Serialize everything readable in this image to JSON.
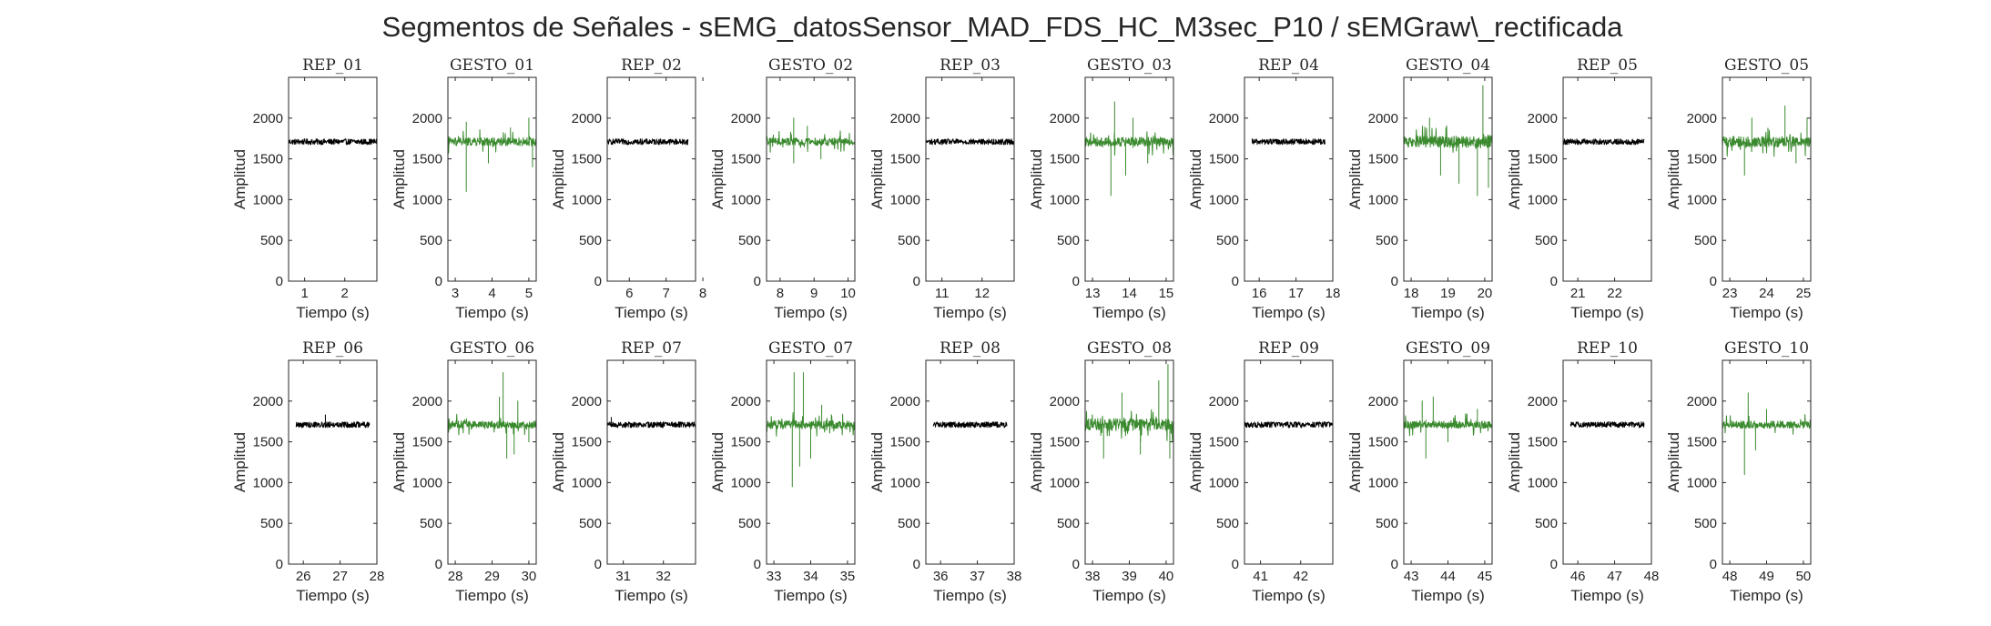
{
  "figure": {
    "title": "Segmentos de Señales - sEMG_datosSensor_MAD_FDS_HC_M3sec_P10 / sEMGraw\\_rectificada"
  },
  "colors": {
    "rep": "#000000",
    "gesto": "#3a8a2e",
    "axes": "#262626"
  },
  "chart_data": [
    {
      "type": "line",
      "title": "REP_01",
      "xlabel": "Tiempo (s)",
      "ylabel": "Amplitud",
      "xlim": [
        0.6,
        2.8
      ],
      "ylim": [
        0,
        2500
      ],
      "xticks": [
        1,
        2
      ],
      "yticks": [
        0,
        500,
        1000,
        1500,
        2000
      ],
      "series": [
        {
          "kind": "rep",
          "x_range": [
            0.6,
            2.8
          ],
          "baseline": 1710,
          "noise": 35,
          "spikes": []
        }
      ]
    },
    {
      "type": "line",
      "title": "GESTO_01",
      "xlabel": "Tiempo (s)",
      "ylabel": "Amplitud",
      "xlim": [
        2.8,
        5.2
      ],
      "ylim": [
        0,
        2500
      ],
      "xticks": [
        3,
        4,
        5
      ],
      "yticks": [
        0,
        500,
        1000,
        1500,
        2000
      ],
      "series": [
        {
          "kind": "gesto",
          "x_range": [
            2.8,
            5.2
          ],
          "baseline": 1710,
          "noise": 50,
          "spikes": [
            {
              "x": 3.3,
              "y": 1100
            },
            {
              "x": 3.3,
              "y": 1950
            },
            {
              "x": 3.9,
              "y": 1450
            },
            {
              "x": 4.5,
              "y": 1880
            },
            {
              "x": 5.0,
              "y": 2000
            },
            {
              "x": 5.1,
              "y": 1400
            }
          ]
        }
      ]
    },
    {
      "type": "line",
      "title": "REP_02",
      "xlabel": "Tiempo (s)",
      "ylabel": "Amplitud",
      "xlim": [
        5.4,
        7.8
      ],
      "ylim": [
        0,
        2500
      ],
      "xticks": [
        6,
        7,
        8
      ],
      "yticks": [
        0,
        500,
        1000,
        1500,
        2000
      ],
      "series": [
        {
          "kind": "rep",
          "x_range": [
            5.4,
            7.6
          ],
          "baseline": 1710,
          "noise": 35,
          "spikes": []
        }
      ]
    },
    {
      "type": "line",
      "title": "GESTO_02",
      "xlabel": "Tiempo (s)",
      "ylabel": "Amplitud",
      "xlim": [
        7.6,
        10.2
      ],
      "ylim": [
        0,
        2500
      ],
      "xticks": [
        8,
        9,
        10
      ],
      "yticks": [
        0,
        500,
        1000,
        1500,
        2000
      ],
      "series": [
        {
          "kind": "gesto",
          "x_range": [
            7.6,
            10.2
          ],
          "baseline": 1710,
          "noise": 45,
          "spikes": [
            {
              "x": 8.4,
              "y": 1450
            },
            {
              "x": 8.4,
              "y": 2000
            },
            {
              "x": 8.8,
              "y": 1900
            },
            {
              "x": 9.2,
              "y": 1500
            }
          ]
        }
      ]
    },
    {
      "type": "line",
      "title": "REP_03",
      "xlabel": "Tiempo (s)",
      "ylabel": "Amplitud",
      "xlim": [
        10.6,
        12.8
      ],
      "ylim": [
        0,
        2500
      ],
      "xticks": [
        11,
        12
      ],
      "yticks": [
        0,
        500,
        1000,
        1500,
        2000
      ],
      "series": [
        {
          "kind": "rep",
          "x_range": [
            10.6,
            12.8
          ],
          "baseline": 1710,
          "noise": 35,
          "spikes": []
        }
      ]
    },
    {
      "type": "line",
      "title": "GESTO_03",
      "xlabel": "Tiempo (s)",
      "ylabel": "Amplitud",
      "xlim": [
        12.8,
        15.2
      ],
      "ylim": [
        0,
        2500
      ],
      "xticks": [
        13,
        14,
        15
      ],
      "yticks": [
        0,
        500,
        1000,
        1500,
        2000
      ],
      "series": [
        {
          "kind": "gesto",
          "x_range": [
            12.8,
            15.2
          ],
          "baseline": 1710,
          "noise": 55,
          "spikes": [
            {
              "x": 13.5,
              "y": 1050
            },
            {
              "x": 13.6,
              "y": 2200
            },
            {
              "x": 13.9,
              "y": 1300
            },
            {
              "x": 14.1,
              "y": 2000
            },
            {
              "x": 14.5,
              "y": 1450
            }
          ]
        }
      ]
    },
    {
      "type": "line",
      "title": "REP_04",
      "xlabel": "Tiempo (s)",
      "ylabel": "Amplitud",
      "xlim": [
        15.6,
        18.0
      ],
      "ylim": [
        0,
        2500
      ],
      "xticks": [
        16,
        17,
        18
      ],
      "yticks": [
        0,
        500,
        1000,
        1500,
        2000
      ],
      "series": [
        {
          "kind": "rep",
          "x_range": [
            15.8,
            17.8
          ],
          "baseline": 1710,
          "noise": 35,
          "spikes": []
        }
      ]
    },
    {
      "type": "line",
      "title": "GESTO_04",
      "xlabel": "Tiempo (s)",
      "ylabel": "Amplitud",
      "xlim": [
        17.8,
        20.2
      ],
      "ylim": [
        0,
        2500
      ],
      "xticks": [
        18,
        19,
        20
      ],
      "yticks": [
        0,
        500,
        1000,
        1500,
        2000
      ],
      "series": [
        {
          "kind": "gesto",
          "x_range": [
            17.8,
            20.2
          ],
          "baseline": 1710,
          "noise": 70,
          "spikes": [
            {
              "x": 18.5,
              "y": 2000
            },
            {
              "x": 18.8,
              "y": 1300
            },
            {
              "x": 19.3,
              "y": 1200
            },
            {
              "x": 19.8,
              "y": 1050
            },
            {
              "x": 19.95,
              "y": 2400
            },
            {
              "x": 20.1,
              "y": 1150
            }
          ]
        }
      ]
    },
    {
      "type": "line",
      "title": "REP_05",
      "xlabel": "Tiempo (s)",
      "ylabel": "Amplitud",
      "xlim": [
        20.6,
        23.0
      ],
      "ylim": [
        0,
        2500
      ],
      "xticks": [
        21,
        22
      ],
      "yticks": [
        0,
        500,
        1000,
        1500,
        2000
      ],
      "series": [
        {
          "kind": "rep",
          "x_range": [
            20.6,
            22.8
          ],
          "baseline": 1710,
          "noise": 35,
          "spikes": []
        }
      ]
    },
    {
      "type": "line",
      "title": "GESTO_05",
      "xlabel": "Tiempo (s)",
      "ylabel": "Amplitud",
      "xlim": [
        22.8,
        25.2
      ],
      "ylim": [
        0,
        2500
      ],
      "xticks": [
        23,
        24,
        25
      ],
      "yticks": [
        0,
        500,
        1000,
        1500,
        2000
      ],
      "series": [
        {
          "kind": "gesto",
          "x_range": [
            22.8,
            25.2
          ],
          "baseline": 1710,
          "noise": 65,
          "spikes": [
            {
              "x": 23.4,
              "y": 1300
            },
            {
              "x": 23.6,
              "y": 2000
            },
            {
              "x": 24.5,
              "y": 2150
            },
            {
              "x": 24.8,
              "y": 1450
            },
            {
              "x": 25.1,
              "y": 2000
            }
          ]
        }
      ]
    },
    {
      "type": "line",
      "title": "REP_06",
      "xlabel": "Tiempo (s)",
      "ylabel": "Amplitud",
      "xlim": [
        25.6,
        28.0
      ],
      "ylim": [
        0,
        2500
      ],
      "xticks": [
        26,
        27,
        28
      ],
      "yticks": [
        0,
        500,
        1000,
        1500,
        2000
      ],
      "series": [
        {
          "kind": "rep",
          "x_range": [
            25.8,
            27.8
          ],
          "baseline": 1710,
          "noise": 35,
          "spikes": [
            {
              "x": 26.6,
              "y": 1830
            }
          ]
        }
      ]
    },
    {
      "type": "line",
      "title": "GESTO_06",
      "xlabel": "Tiempo (s)",
      "ylabel": "Amplitud",
      "xlim": [
        27.8,
        30.2
      ],
      "ylim": [
        0,
        2500
      ],
      "xticks": [
        28,
        29,
        30
      ],
      "yticks": [
        0,
        500,
        1000,
        1500,
        2000
      ],
      "series": [
        {
          "kind": "gesto",
          "x_range": [
            27.8,
            30.2
          ],
          "baseline": 1710,
          "noise": 45,
          "spikes": [
            {
              "x": 29.2,
              "y": 2050
            },
            {
              "x": 29.3,
              "y": 2350
            },
            {
              "x": 29.4,
              "y": 1300
            },
            {
              "x": 29.6,
              "y": 1350
            },
            {
              "x": 29.7,
              "y": 2000
            },
            {
              "x": 30.0,
              "y": 1500
            }
          ]
        }
      ]
    },
    {
      "type": "line",
      "title": "REP_07",
      "xlabel": "Tiempo (s)",
      "ylabel": "Amplitud",
      "xlim": [
        30.6,
        32.8
      ],
      "ylim": [
        0,
        2500
      ],
      "xticks": [
        31,
        32
      ],
      "yticks": [
        0,
        500,
        1000,
        1500,
        2000
      ],
      "series": [
        {
          "kind": "rep",
          "x_range": [
            30.6,
            32.8
          ],
          "baseline": 1710,
          "noise": 35,
          "spikes": [
            {
              "x": 30.7,
              "y": 1800
            }
          ]
        }
      ]
    },
    {
      "type": "line",
      "title": "GESTO_07",
      "xlabel": "Tiempo (s)",
      "ylabel": "Amplitud",
      "xlim": [
        32.8,
        35.2
      ],
      "ylim": [
        0,
        2500
      ],
      "xticks": [
        33,
        34,
        35
      ],
      "yticks": [
        0,
        500,
        1000,
        1500,
        2000
      ],
      "series": [
        {
          "kind": "gesto",
          "x_range": [
            32.8,
            35.2
          ],
          "baseline": 1710,
          "noise": 50,
          "spikes": [
            {
              "x": 33.5,
              "y": 950
            },
            {
              "x": 33.55,
              "y": 2350
            },
            {
              "x": 33.7,
              "y": 1200
            },
            {
              "x": 33.8,
              "y": 2350
            },
            {
              "x": 34.0,
              "y": 1300
            },
            {
              "x": 34.3,
              "y": 1950
            }
          ]
        }
      ]
    },
    {
      "type": "line",
      "title": "REP_08",
      "xlabel": "Tiempo (s)",
      "ylabel": "Amplitud",
      "xlim": [
        35.6,
        38.0
      ],
      "ylim": [
        0,
        2500
      ],
      "xticks": [
        36,
        37,
        38
      ],
      "yticks": [
        0,
        500,
        1000,
        1500,
        2000
      ],
      "series": [
        {
          "kind": "rep",
          "x_range": [
            35.8,
            37.8
          ],
          "baseline": 1710,
          "noise": 35,
          "spikes": []
        }
      ]
    },
    {
      "type": "line",
      "title": "GESTO_08",
      "xlabel": "Tiempo (s)",
      "ylabel": "Amplitud",
      "xlim": [
        37.8,
        40.2
      ],
      "ylim": [
        0,
        2500
      ],
      "xticks": [
        38,
        39,
        40
      ],
      "yticks": [
        0,
        500,
        1000,
        1500,
        2000
      ],
      "series": [
        {
          "kind": "gesto",
          "x_range": [
            37.8,
            40.2
          ],
          "baseline": 1710,
          "noise": 75,
          "spikes": [
            {
              "x": 38.3,
              "y": 1300
            },
            {
              "x": 38.8,
              "y": 2100
            },
            {
              "x": 39.3,
              "y": 1350
            },
            {
              "x": 39.8,
              "y": 2250
            },
            {
              "x": 40.05,
              "y": 2450
            },
            {
              "x": 40.1,
              "y": 1300
            }
          ]
        }
      ]
    },
    {
      "type": "line",
      "title": "REP_09",
      "xlabel": "Tiempo (s)",
      "ylabel": "Amplitud",
      "xlim": [
        40.6,
        42.8
      ],
      "ylim": [
        0,
        2500
      ],
      "xticks": [
        41,
        42
      ],
      "yticks": [
        0,
        500,
        1000,
        1500,
        2000
      ],
      "series": [
        {
          "kind": "rep",
          "x_range": [
            40.6,
            42.8
          ],
          "baseline": 1710,
          "noise": 35,
          "spikes": []
        }
      ]
    },
    {
      "type": "line",
      "title": "GESTO_09",
      "xlabel": "Tiempo (s)",
      "ylabel": "Amplitud",
      "xlim": [
        42.8,
        45.2
      ],
      "ylim": [
        0,
        2500
      ],
      "xticks": [
        43,
        44,
        45
      ],
      "yticks": [
        0,
        500,
        1000,
        1500,
        2000
      ],
      "series": [
        {
          "kind": "gesto",
          "x_range": [
            42.8,
            45.2
          ],
          "baseline": 1710,
          "noise": 45,
          "spikes": [
            {
              "x": 43.3,
              "y": 2000
            },
            {
              "x": 43.4,
              "y": 1300
            },
            {
              "x": 43.6,
              "y": 2050
            },
            {
              "x": 44.0,
              "y": 1500
            },
            {
              "x": 44.8,
              "y": 1900
            }
          ]
        }
      ]
    },
    {
      "type": "line",
      "title": "REP_10",
      "xlabel": "Tiempo (s)",
      "ylabel": "Amplitud",
      "xlim": [
        45.6,
        48.0
      ],
      "ylim": [
        0,
        2500
      ],
      "xticks": [
        46,
        47,
        48
      ],
      "yticks": [
        0,
        500,
        1000,
        1500,
        2000
      ],
      "series": [
        {
          "kind": "rep",
          "x_range": [
            45.8,
            47.8
          ],
          "baseline": 1710,
          "noise": 35,
          "spikes": []
        }
      ]
    },
    {
      "type": "line",
      "title": "GESTO_10",
      "xlabel": "Tiempo (s)",
      "ylabel": "Amplitud",
      "xlim": [
        47.8,
        50.2
      ],
      "ylim": [
        0,
        2500
      ],
      "xticks": [
        48,
        49,
        50
      ],
      "yticks": [
        0,
        500,
        1000,
        1500,
        2000
      ],
      "series": [
        {
          "kind": "gesto",
          "x_range": [
            47.8,
            50.2
          ],
          "baseline": 1710,
          "noise": 45,
          "spikes": [
            {
              "x": 48.4,
              "y": 1100
            },
            {
              "x": 48.5,
              "y": 2100
            },
            {
              "x": 48.7,
              "y": 1400
            },
            {
              "x": 49.0,
              "y": 1900
            }
          ]
        }
      ]
    }
  ]
}
